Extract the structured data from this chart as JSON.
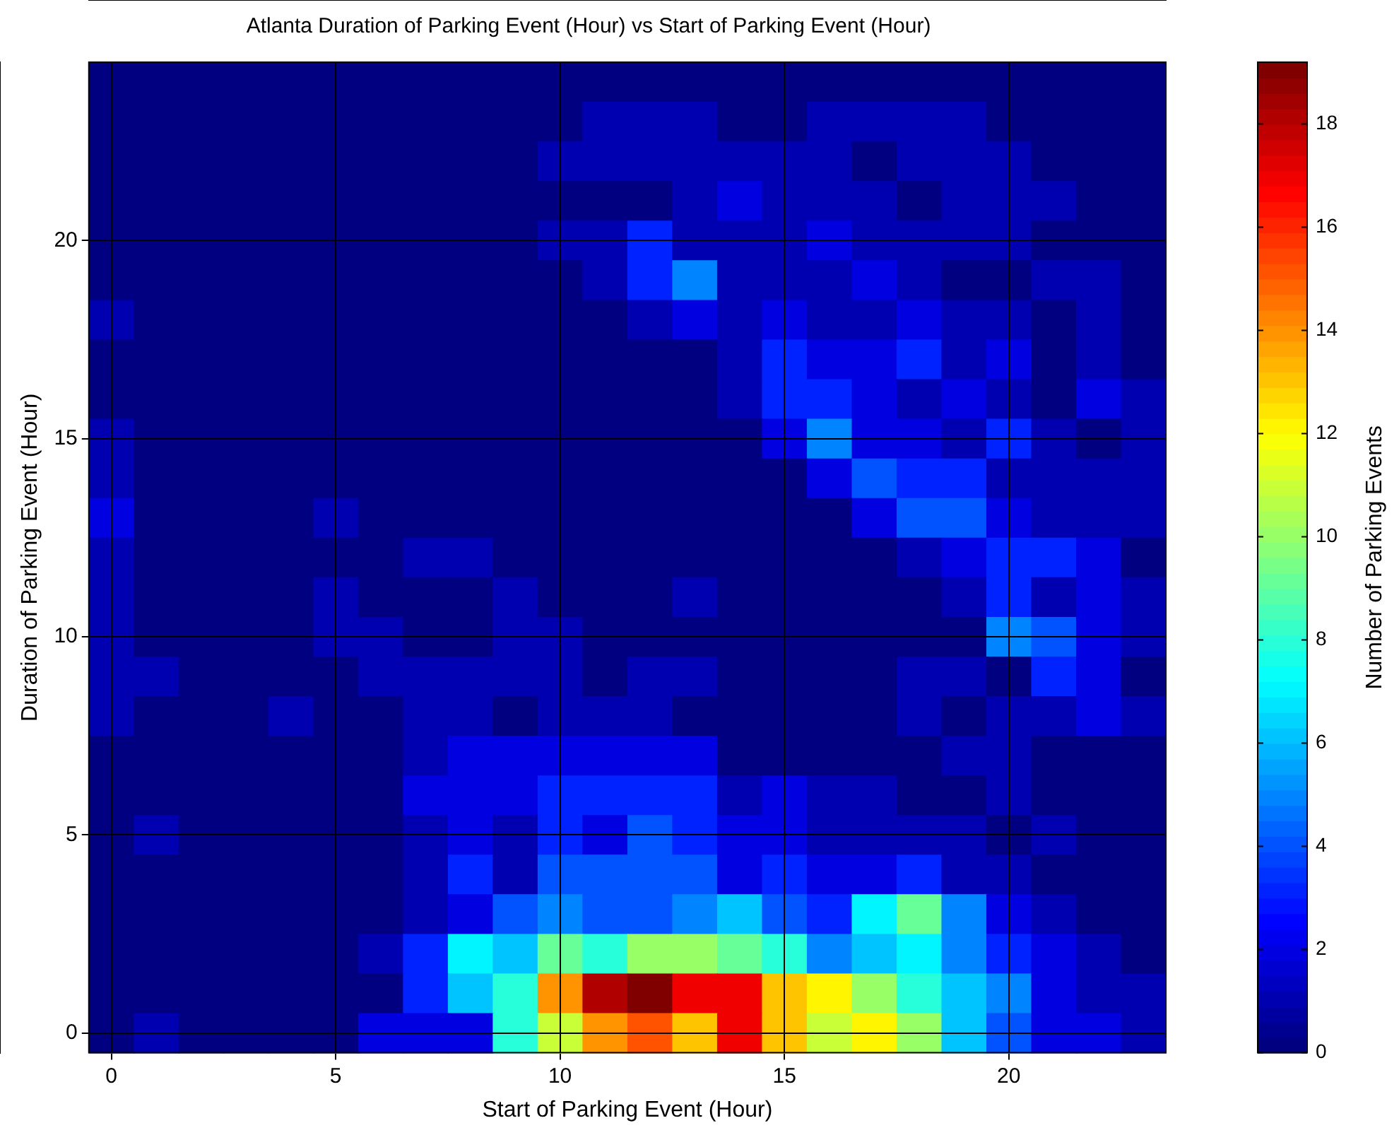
{
  "chart_data": {
    "type": "heatmap",
    "title": "Atlanta Duration of Parking Event (Hour) vs Start of Parking Event (Hour)",
    "xlabel": "Start of Parking Event (Hour)",
    "ylabel": "Duration of Parking Event (Hour)",
    "clabel": "Number of Parking Events",
    "grid": true,
    "categories": [
      "0",
      null,
      null,
      null,
      null,
      "5",
      null,
      null,
      null,
      null,
      "10",
      null,
      null,
      null,
      null,
      "15",
      null,
      null,
      null,
      null,
      "20",
      null,
      null,
      null
    ],
    "y_categories": [
      null,
      null,
      null,
      null,
      "20",
      null,
      null,
      null,
      null,
      "15",
      null,
      null,
      null,
      null,
      "10",
      null,
      null,
      null,
      null,
      "5",
      null,
      null,
      null,
      null,
      "0"
    ],
    "clim": [
      0,
      19.2
    ],
    "cticks": [
      0,
      2,
      4,
      6,
      8,
      10,
      12,
      14,
      16,
      18
    ],
    "cells": [
      [
        0,
        0,
        0,
        0,
        0,
        0,
        0,
        0,
        0,
        0,
        0,
        0,
        0,
        0,
        0,
        0,
        0,
        0,
        0,
        0,
        0,
        0,
        0,
        0
      ],
      [
        0,
        0,
        0,
        0,
        0,
        0,
        0,
        0,
        0,
        0,
        0,
        1,
        1,
        1,
        0,
        0,
        1,
        1,
        1,
        1,
        0,
        0,
        0,
        0
      ],
      [
        0,
        0,
        0,
        0,
        0,
        0,
        0,
        0,
        0,
        0,
        1,
        1,
        1,
        1,
        1,
        1,
        1,
        0,
        1,
        1,
        1,
        0,
        0,
        0
      ],
      [
        0,
        0,
        0,
        0,
        0,
        0,
        0,
        0,
        0,
        0,
        0,
        0,
        0,
        1,
        2,
        1,
        1,
        1,
        0,
        1,
        1,
        1,
        0,
        0
      ],
      [
        0,
        0,
        0,
        0,
        0,
        0,
        0,
        0,
        0,
        0,
        1,
        1,
        3,
        1,
        1,
        1,
        2,
        1,
        1,
        1,
        1,
        0,
        0,
        0
      ],
      [
        0,
        0,
        0,
        0,
        0,
        0,
        0,
        0,
        0,
        0,
        0,
        1,
        3,
        5,
        1,
        1,
        1,
        2,
        1,
        0,
        0,
        1,
        1,
        0
      ],
      [
        1,
        0,
        0,
        0,
        0,
        0,
        0,
        0,
        0,
        0,
        0,
        0,
        1,
        2,
        1,
        2,
        1,
        1,
        2,
        1,
        1,
        0,
        1,
        0
      ],
      [
        0,
        0,
        0,
        0,
        0,
        0,
        0,
        0,
        0,
        0,
        0,
        0,
        0,
        0,
        1,
        3,
        2,
        2,
        3,
        1,
        2,
        0,
        1,
        0
      ],
      [
        0,
        0,
        0,
        0,
        0,
        0,
        0,
        0,
        0,
        0,
        0,
        0,
        0,
        0,
        1,
        3,
        3,
        2,
        1,
        2,
        1,
        0,
        2,
        1
      ],
      [
        1,
        0,
        0,
        0,
        0,
        0,
        0,
        0,
        0,
        0,
        0,
        0,
        0,
        0,
        0,
        2,
        5,
        2,
        2,
        1,
        3,
        1,
        0,
        1
      ],
      [
        1,
        0,
        0,
        0,
        0,
        0,
        0,
        0,
        0,
        0,
        0,
        0,
        0,
        0,
        0,
        0,
        2,
        4,
        3,
        3,
        1,
        1,
        1,
        1
      ],
      [
        2,
        0,
        0,
        0,
        0,
        1,
        0,
        0,
        0,
        0,
        0,
        0,
        0,
        0,
        0,
        0,
        0,
        2,
        4,
        4,
        2,
        1,
        1,
        1
      ],
      [
        1,
        0,
        0,
        0,
        0,
        0,
        0,
        1,
        1,
        0,
        0,
        0,
        0,
        0,
        0,
        0,
        0,
        0,
        1,
        2,
        3,
        3,
        2,
        0
      ],
      [
        1,
        0,
        0,
        0,
        0,
        1,
        0,
        0,
        0,
        1,
        0,
        0,
        0,
        1,
        0,
        0,
        0,
        0,
        0,
        1,
        3,
        1,
        2,
        1
      ],
      [
        1,
        0,
        0,
        0,
        0,
        1,
        1,
        0,
        0,
        1,
        1,
        0,
        0,
        0,
        0,
        0,
        0,
        0,
        0,
        0,
        5,
        4,
        2,
        1
      ],
      [
        1,
        1,
        0,
        0,
        0,
        0,
        1,
        1,
        1,
        1,
        1,
        0,
        1,
        1,
        0,
        0,
        0,
        0,
        1,
        1,
        0,
        3,
        2,
        0
      ],
      [
        1,
        0,
        0,
        0,
        1,
        0,
        0,
        1,
        1,
        0,
        1,
        1,
        1,
        0,
        0,
        0,
        0,
        0,
        1,
        0,
        1,
        1,
        2,
        1
      ],
      [
        0,
        0,
        0,
        0,
        0,
        0,
        0,
        1,
        2,
        2,
        2,
        2,
        2,
        2,
        0,
        0,
        0,
        0,
        0,
        1,
        1,
        0,
        0,
        0
      ],
      [
        0,
        0,
        0,
        0,
        0,
        0,
        0,
        2,
        2,
        2,
        3,
        3,
        3,
        3,
        1,
        2,
        1,
        1,
        0,
        0,
        1,
        0,
        0,
        0
      ],
      [
        0,
        1,
        0,
        0,
        0,
        0,
        0,
        1,
        2,
        1,
        3,
        2,
        4,
        3,
        2,
        2,
        1,
        1,
        1,
        1,
        0,
        1,
        0,
        0
      ],
      [
        0,
        0,
        0,
        0,
        0,
        0,
        0,
        1,
        3,
        1,
        4,
        4,
        4,
        4,
        2,
        3,
        2,
        2,
        3,
        1,
        1,
        0,
        0,
        0
      ],
      [
        0,
        0,
        0,
        0,
        0,
        0,
        0,
        1,
        2,
        4,
        5,
        4,
        4,
        5,
        6,
        4,
        3,
        7,
        9,
        5,
        2,
        1,
        0,
        0
      ],
      [
        0,
        0,
        0,
        0,
        0,
        0,
        1,
        3,
        7,
        6,
        9,
        8,
        10,
        10,
        9,
        8,
        5,
        6,
        7,
        5,
        3,
        2,
        1,
        0
      ],
      [
        0,
        0,
        0,
        0,
        0,
        0,
        0,
        3,
        6,
        8,
        14,
        18,
        19,
        17,
        17,
        13,
        12,
        10,
        8,
        6,
        5,
        2,
        1,
        1
      ],
      [
        0,
        1,
        0,
        0,
        0,
        0,
        2,
        2,
        2,
        8,
        11,
        14,
        15,
        13,
        17,
        13,
        11,
        12,
        10,
        6,
        4,
        2,
        2,
        1
      ]
    ]
  }
}
